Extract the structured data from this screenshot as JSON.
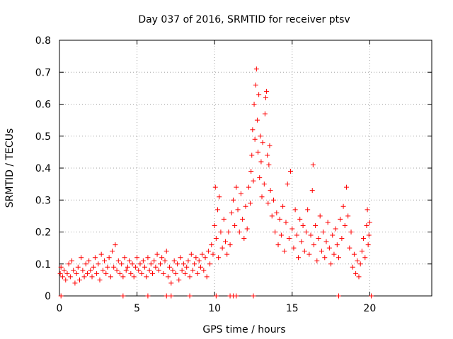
{
  "chart_data": {
    "type": "scatter",
    "title": "Day 037 of 2016, SRMTID for receiver ptsv",
    "xlabel": "GPS time / hours",
    "ylabel": "SRMTID / TECUs",
    "xlim": [
      0,
      24
    ],
    "ylim": [
      0,
      0.8
    ],
    "xticks": [
      0,
      5,
      10,
      15,
      20
    ],
    "yticks": [
      0,
      0.1,
      0.2,
      0.3,
      0.4,
      0.5,
      0.6,
      0.7,
      0.8
    ],
    "xtick_labels": [
      "0",
      "5",
      "10",
      "15",
      "20"
    ],
    "ytick_labels": [
      "0",
      "0.1",
      "0.2",
      "0.3",
      "0.4",
      "0.5",
      "0.6",
      "0.7",
      "0.8"
    ],
    "grid": true,
    "marker": "+",
    "marker_color": "#ff0000",
    "series": [
      {
        "name": "SRMTID",
        "points": [
          [
            0.05,
            0.07
          ],
          [
            0.1,
            0.09
          ],
          [
            0.2,
            0.06
          ],
          [
            0.3,
            0.08
          ],
          [
            0.4,
            0.05
          ],
          [
            0.5,
            0.07
          ],
          [
            0.6,
            0.1
          ],
          [
            0.7,
            0.06
          ],
          [
            0.8,
            0.11
          ],
          [
            0.9,
            0.08
          ],
          [
            1.0,
            0.04
          ],
          [
            1.1,
            0.07
          ],
          [
            1.2,
            0.09
          ],
          [
            1.3,
            0.05
          ],
          [
            1.4,
            0.12
          ],
          [
            1.5,
            0.08
          ],
          [
            1.6,
            0.06
          ],
          [
            1.7,
            0.1
          ],
          [
            1.8,
            0.07
          ],
          [
            1.9,
            0.11
          ],
          [
            2.0,
            0.08
          ],
          [
            2.1,
            0.06
          ],
          [
            2.2,
            0.09
          ],
          [
            2.3,
            0.12
          ],
          [
            2.4,
            0.07
          ],
          [
            2.5,
            0.1
          ],
          [
            2.6,
            0.05
          ],
          [
            2.7,
            0.13
          ],
          [
            2.8,
            0.08
          ],
          [
            2.9,
            0.11
          ],
          [
            3.0,
            0.07
          ],
          [
            3.1,
            0.09
          ],
          [
            3.2,
            0.12
          ],
          [
            3.3,
            0.06
          ],
          [
            3.4,
            0.14
          ],
          [
            3.5,
            0.09
          ],
          [
            3.6,
            0.16
          ],
          [
            3.7,
            0.08
          ],
          [
            3.8,
            0.11
          ],
          [
            3.9,
            0.07
          ],
          [
            4.0,
            0.1
          ],
          [
            4.1,
            0.06
          ],
          [
            4.2,
            0.12
          ],
          [
            4.3,
            0.08
          ],
          [
            4.4,
            0.09
          ],
          [
            4.5,
            0.11
          ],
          [
            4.6,
            0.07
          ],
          [
            4.7,
            0.1
          ],
          [
            4.8,
            0.06
          ],
          [
            4.9,
            0.09
          ],
          [
            5.0,
            0.12
          ],
          [
            5.1,
            0.08
          ],
          [
            5.2,
            0.1
          ],
          [
            5.3,
            0.07
          ],
          [
            5.4,
            0.11
          ],
          [
            5.5,
            0.09
          ],
          [
            5.6,
            0.06
          ],
          [
            5.7,
            0.12
          ],
          [
            5.8,
            0.08
          ],
          [
            5.9,
            0.1
          ],
          [
            6.0,
            0.07
          ],
          [
            6.1,
            0.11
          ],
          [
            6.2,
            0.09
          ],
          [
            6.3,
            0.13
          ],
          [
            6.4,
            0.08
          ],
          [
            6.5,
            0.1
          ],
          [
            6.6,
            0.12
          ],
          [
            6.7,
            0.07
          ],
          [
            6.8,
            0.11
          ],
          [
            6.9,
            0.14
          ],
          [
            7.0,
            0.06
          ],
          [
            7.1,
            0.09
          ],
          [
            7.2,
            0.04
          ],
          [
            7.3,
            0.08
          ],
          [
            7.4,
            0.11
          ],
          [
            7.5,
            0.07
          ],
          [
            7.6,
            0.1
          ],
          [
            7.7,
            0.05
          ],
          [
            7.8,
            0.12
          ],
          [
            7.9,
            0.08
          ],
          [
            8.0,
            0.1
          ],
          [
            8.1,
            0.07
          ],
          [
            8.2,
            0.09
          ],
          [
            8.3,
            0.11
          ],
          [
            8.4,
            0.06
          ],
          [
            8.5,
            0.13
          ],
          [
            8.6,
            0.08
          ],
          [
            8.7,
            0.1
          ],
          [
            8.8,
            0.12
          ],
          [
            8.9,
            0.07
          ],
          [
            9.0,
            0.11
          ],
          [
            9.1,
            0.09
          ],
          [
            9.2,
            0.13
          ],
          [
            9.3,
            0.08
          ],
          [
            9.4,
            0.12
          ],
          [
            9.5,
            0.06
          ],
          [
            9.6,
            0.14
          ],
          [
            9.7,
            0.1
          ],
          [
            9.8,
            0.16
          ],
          [
            9.9,
            0.13
          ],
          [
            10.0,
            0.22
          ],
          [
            10.05,
            0.34
          ],
          [
            10.1,
            0.18
          ],
          [
            10.2,
            0.27
          ],
          [
            10.25,
            0.12
          ],
          [
            10.3,
            0.31
          ],
          [
            10.4,
            0.2
          ],
          [
            10.5,
            0.15
          ],
          [
            10.6,
            0.24
          ],
          [
            10.7,
            0.17
          ],
          [
            10.8,
            0.13
          ],
          [
            10.9,
            0.2
          ],
          [
            11.0,
            0.16
          ],
          [
            11.1,
            0.26
          ],
          [
            11.2,
            0.3
          ],
          [
            11.3,
            0.22
          ],
          [
            11.4,
            0.34
          ],
          [
            11.5,
            0.27
          ],
          [
            11.6,
            0.2
          ],
          [
            11.7,
            0.32
          ],
          [
            11.8,
            0.24
          ],
          [
            11.9,
            0.18
          ],
          [
            12.0,
            0.28
          ],
          [
            12.1,
            0.21
          ],
          [
            12.2,
            0.34
          ],
          [
            12.3,
            0.29
          ],
          [
            12.35,
            0.39
          ],
          [
            12.4,
            0.44
          ],
          [
            12.45,
            0.52
          ],
          [
            12.5,
            0.36
          ],
          [
            12.55,
            0.6
          ],
          [
            12.6,
            0.49
          ],
          [
            12.65,
            0.66
          ],
          [
            12.7,
            0.71
          ],
          [
            12.75,
            0.55
          ],
          [
            12.8,
            0.45
          ],
          [
            12.85,
            0.63
          ],
          [
            12.9,
            0.37
          ],
          [
            12.95,
            0.5
          ],
          [
            13.0,
            0.42
          ],
          [
            13.05,
            0.31
          ],
          [
            13.1,
            0.48
          ],
          [
            13.2,
            0.35
          ],
          [
            13.25,
            0.57
          ],
          [
            13.3,
            0.62
          ],
          [
            13.35,
            0.64
          ],
          [
            13.4,
            0.44
          ],
          [
            13.45,
            0.29
          ],
          [
            13.5,
            0.41
          ],
          [
            13.55,
            0.47
          ],
          [
            13.6,
            0.33
          ],
          [
            13.7,
            0.25
          ],
          [
            13.8,
            0.3
          ],
          [
            13.9,
            0.2
          ],
          [
            14.0,
            0.26
          ],
          [
            14.1,
            0.16
          ],
          [
            14.2,
            0.24
          ],
          [
            14.3,
            0.19
          ],
          [
            14.4,
            0.28
          ],
          [
            14.5,
            0.14
          ],
          [
            14.6,
            0.23
          ],
          [
            14.7,
            0.35
          ],
          [
            14.8,
            0.18
          ],
          [
            14.9,
            0.39
          ],
          [
            15.0,
            0.21
          ],
          [
            15.1,
            0.15
          ],
          [
            15.2,
            0.27
          ],
          [
            15.3,
            0.19
          ],
          [
            15.4,
            0.12
          ],
          [
            15.5,
            0.24
          ],
          [
            15.6,
            0.17
          ],
          [
            15.7,
            0.22
          ],
          [
            15.8,
            0.14
          ],
          [
            15.9,
            0.2
          ],
          [
            16.0,
            0.27
          ],
          [
            16.1,
            0.13
          ],
          [
            16.2,
            0.19
          ],
          [
            16.3,
            0.33
          ],
          [
            16.35,
            0.41
          ],
          [
            16.4,
            0.16
          ],
          [
            16.5,
            0.22
          ],
          [
            16.6,
            0.11
          ],
          [
            16.7,
            0.18
          ],
          [
            16.8,
            0.25
          ],
          [
            16.9,
            0.14
          ],
          [
            17.0,
            0.2
          ],
          [
            17.1,
            0.12
          ],
          [
            17.2,
            0.17
          ],
          [
            17.3,
            0.23
          ],
          [
            17.4,
            0.15
          ],
          [
            17.5,
            0.1
          ],
          [
            17.6,
            0.19
          ],
          [
            17.7,
            0.13
          ],
          [
            17.8,
            0.21
          ],
          [
            17.9,
            0.16
          ],
          [
            18.0,
            0.12
          ],
          [
            18.1,
            0.24
          ],
          [
            18.2,
            0.18
          ],
          [
            18.3,
            0.28
          ],
          [
            18.4,
            0.22
          ],
          [
            18.5,
            0.34
          ],
          [
            18.6,
            0.25
          ],
          [
            18.7,
            0.15
          ],
          [
            18.8,
            0.2
          ],
          [
            18.9,
            0.09
          ],
          [
            19.0,
            0.13
          ],
          [
            19.1,
            0.07
          ],
          [
            19.2,
            0.11
          ],
          [
            19.3,
            0.06
          ],
          [
            19.4,
            0.1
          ],
          [
            19.5,
            0.14
          ],
          [
            19.6,
            0.18
          ],
          [
            19.7,
            0.12
          ],
          [
            19.8,
            0.22
          ],
          [
            19.85,
            0.27
          ],
          [
            19.9,
            0.16
          ],
          [
            19.95,
            0.19
          ],
          [
            20.0,
            0.23
          ],
          [
            0.1,
            0.0
          ],
          [
            4.1,
            0.0
          ],
          [
            5.7,
            0.0
          ],
          [
            6.9,
            0.0
          ],
          [
            7.2,
            0.0
          ],
          [
            8.4,
            0.0
          ],
          [
            10.1,
            0.0
          ],
          [
            11.0,
            0.0
          ],
          [
            11.2,
            0.0
          ],
          [
            11.4,
            0.0
          ],
          [
            12.5,
            0.0
          ],
          [
            18.0,
            0.0
          ],
          [
            20.1,
            0.0
          ]
        ]
      }
    ]
  }
}
